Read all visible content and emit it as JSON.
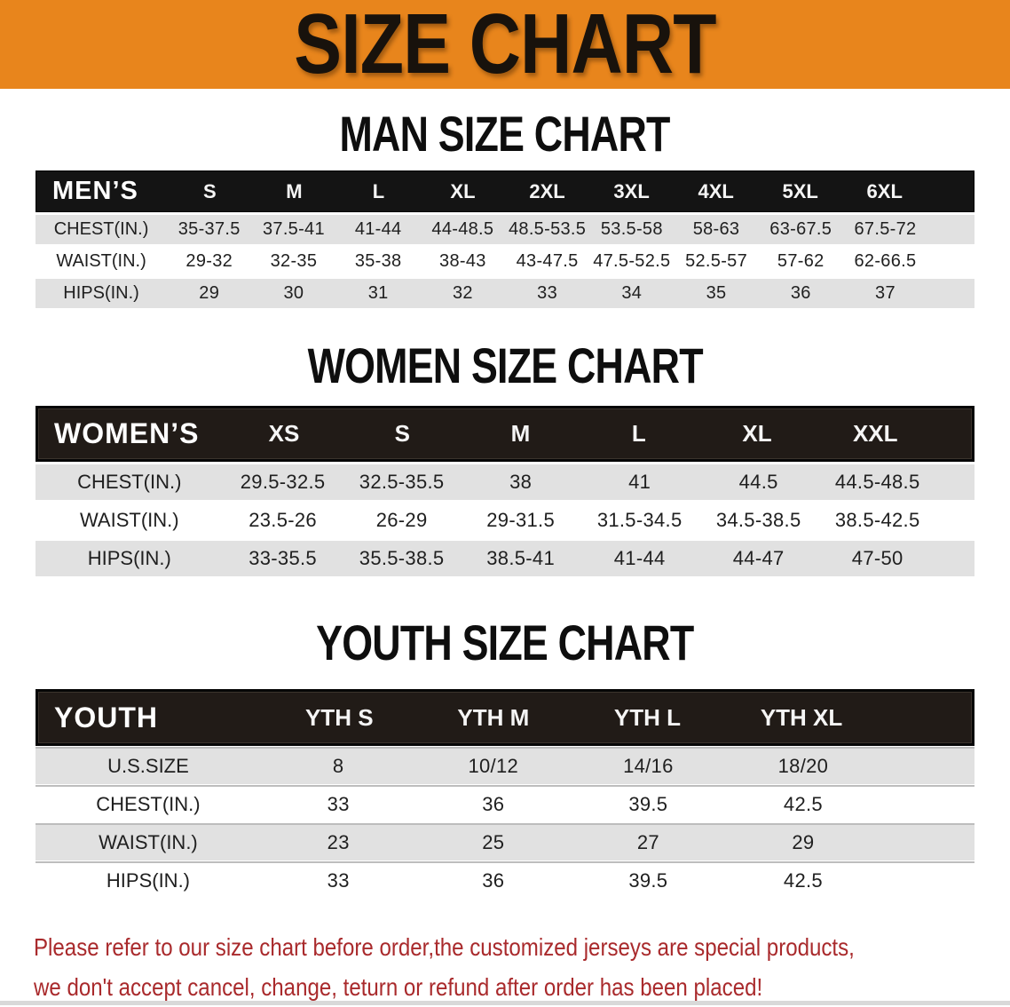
{
  "banner": {
    "title": "SIZE CHART"
  },
  "men": {
    "heading": "MAN SIZE CHART",
    "label": "MEN’S",
    "columns": [
      "S",
      "M",
      "L",
      "XL",
      "2XL",
      "3XL",
      "4XL",
      "5XL",
      "6XL"
    ],
    "rows": [
      {
        "label": "CHEST(IN.)",
        "values": [
          "35-37.5",
          "37.5-41",
          "41-44",
          "44-48.5",
          "48.5-53.5",
          "53.5-58",
          "58-63",
          "63-67.5",
          "67.5-72"
        ]
      },
      {
        "label": "WAIST(IN.)",
        "values": [
          "29-32",
          "32-35",
          "35-38",
          "38-43",
          "43-47.5",
          "47.5-52.5",
          "52.5-57",
          "57-62",
          "62-66.5"
        ]
      },
      {
        "label": "HIPS(IN.)",
        "values": [
          "29",
          "30",
          "31",
          "32",
          "33",
          "34",
          "35",
          "36",
          "37"
        ]
      }
    ]
  },
  "women": {
    "heading": "WOMEN SIZE CHART",
    "label": "WOMEN’S",
    "columns": [
      "XS",
      "S",
      "M",
      "L",
      "XL",
      "XXL"
    ],
    "rows": [
      {
        "label": "CHEST(IN.)",
        "values": [
          "29.5-32.5",
          "32.5-35.5",
          "38",
          "41",
          "44.5",
          "44.5-48.5"
        ]
      },
      {
        "label": "WAIST(IN.)",
        "values": [
          "23.5-26",
          "26-29",
          "29-31.5",
          "31.5-34.5",
          "34.5-38.5",
          "38.5-42.5"
        ]
      },
      {
        "label": "HIPS(IN.)",
        "values": [
          "33-35.5",
          "35.5-38.5",
          "38.5-41",
          "41-44",
          "44-47",
          "47-50"
        ]
      }
    ]
  },
  "youth": {
    "heading": "YOUTH SIZE CHART",
    "label": "YOUTH",
    "columns": [
      "YTH S",
      "YTH M",
      "YTH L",
      "YTH XL"
    ],
    "rows": [
      {
        "label": "U.S.SIZE",
        "values": [
          "8",
          "10/12",
          "14/16",
          "18/20"
        ]
      },
      {
        "label": "CHEST(IN.)",
        "values": [
          "33",
          "36",
          "39.5",
          "42.5"
        ]
      },
      {
        "label": "WAIST(IN.)",
        "values": [
          "23",
          "25",
          "27",
          "29"
        ]
      },
      {
        "label": "HIPS(IN.)",
        "values": [
          "33",
          "36",
          "39.5",
          "42.5"
        ]
      }
    ]
  },
  "disclaimer": {
    "line1": "Please refer to our size chart before order,the customized jerseys are special products,",
    "line2": "we don't accept cancel, change, teturn or refund after order has been placed!"
  },
  "colors": {
    "banner_orange": "#E8851C",
    "bar_black": "#1A1612",
    "stripe_gray": "#E1E1E1",
    "disclaimer_red": "#A92A2C"
  }
}
